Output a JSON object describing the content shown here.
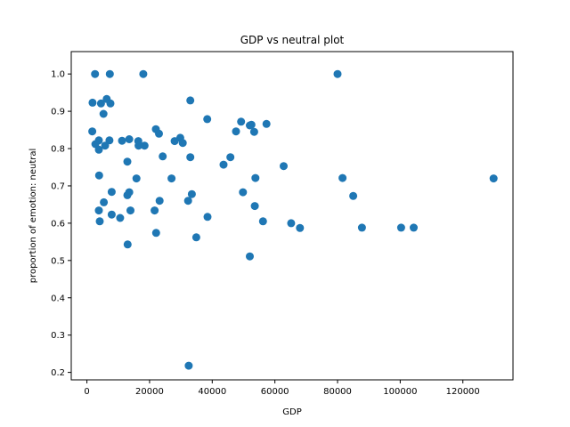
{
  "chart_data": {
    "type": "scatter",
    "title": "GDP vs neutral plot",
    "xlabel": "GDP",
    "ylabel": "proportion of emotion: neutral",
    "xlim": [
      -5000,
      136000
    ],
    "ylim": [
      0.18,
      1.06
    ],
    "xticks": [
      0,
      20000,
      40000,
      60000,
      80000,
      100000,
      120000
    ],
    "yticks": [
      0.2,
      0.3,
      0.4,
      0.5,
      0.6,
      0.7,
      0.8,
      0.9,
      1.0
    ],
    "ytick_labels": [
      "0.2",
      "0.3",
      "0.4",
      "0.5",
      "0.6",
      "0.7",
      "0.8",
      "0.9",
      "1.0"
    ],
    "grid": false,
    "marker_color": "#1f77b4",
    "series": [
      {
        "points": [
          [
            2600,
            1.0
          ],
          [
            7300,
            1.0
          ],
          [
            18000,
            1.0
          ],
          [
            80000,
            1.0
          ],
          [
            1800,
            0.923
          ],
          [
            4500,
            0.921
          ],
          [
            6300,
            0.933
          ],
          [
            7500,
            0.921
          ],
          [
            33000,
            0.929
          ],
          [
            5300,
            0.893
          ],
          [
            38400,
            0.879
          ],
          [
            49200,
            0.872
          ],
          [
            52500,
            0.864
          ],
          [
            52000,
            0.862
          ],
          [
            57300,
            0.866
          ],
          [
            1700,
            0.846
          ],
          [
            22000,
            0.852
          ],
          [
            23000,
            0.84
          ],
          [
            47600,
            0.846
          ],
          [
            53400,
            0.845
          ],
          [
            29800,
            0.829
          ],
          [
            30600,
            0.815
          ],
          [
            28000,
            0.82
          ],
          [
            11200,
            0.821
          ],
          [
            13500,
            0.825
          ],
          [
            7200,
            0.822
          ],
          [
            3800,
            0.822
          ],
          [
            2700,
            0.812
          ],
          [
            3800,
            0.797
          ],
          [
            5800,
            0.808
          ],
          [
            16400,
            0.82
          ],
          [
            18400,
            0.808
          ],
          [
            16500,
            0.808
          ],
          [
            24200,
            0.779
          ],
          [
            33000,
            0.777
          ],
          [
            12900,
            0.765
          ],
          [
            45800,
            0.777
          ],
          [
            43600,
            0.757
          ],
          [
            62800,
            0.753
          ],
          [
            3900,
            0.728
          ],
          [
            15800,
            0.72
          ],
          [
            27000,
            0.72
          ],
          [
            53800,
            0.721
          ],
          [
            81600,
            0.721
          ],
          [
            129800,
            0.72
          ],
          [
            7900,
            0.684
          ],
          [
            13500,
            0.683
          ],
          [
            12900,
            0.675
          ],
          [
            33500,
            0.678
          ],
          [
            49800,
            0.683
          ],
          [
            85000,
            0.673
          ],
          [
            5400,
            0.656
          ],
          [
            23200,
            0.66
          ],
          [
            32300,
            0.66
          ],
          [
            3800,
            0.634
          ],
          [
            13900,
            0.634
          ],
          [
            21600,
            0.634
          ],
          [
            53600,
            0.646
          ],
          [
            7900,
            0.623
          ],
          [
            10600,
            0.614
          ],
          [
            38500,
            0.617
          ],
          [
            4100,
            0.605
          ],
          [
            56200,
            0.605
          ],
          [
            65200,
            0.6
          ],
          [
            68000,
            0.587
          ],
          [
            87800,
            0.588
          ],
          [
            100300,
            0.588
          ],
          [
            104300,
            0.588
          ],
          [
            22100,
            0.574
          ],
          [
            34900,
            0.562
          ],
          [
            13000,
            0.543
          ],
          [
            52000,
            0.511
          ],
          [
            32500,
            0.218
          ]
        ]
      }
    ]
  }
}
